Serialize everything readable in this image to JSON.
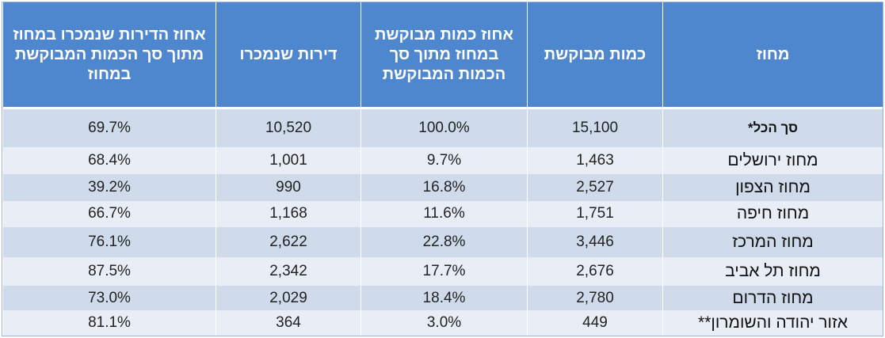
{
  "table": {
    "headers": {
      "region": "מחוז",
      "requested_qty": "כמות מבוקשת",
      "requested_pct": "אחוז כמות מבוקשת במחוז מתוך סך הכמות המבוקשת",
      "sold": "דירות שנמכרו",
      "sold_pct": "אחוז הדירות שנמכרו במחוז מתוך סך הכמות המבוקשת במחוז"
    },
    "rows": [
      {
        "region": "סך הכל*",
        "requested_qty": "15,100",
        "requested_pct": "100.0%",
        "sold": "10,520",
        "sold_pct": "69.7%"
      },
      {
        "region": "מחוז ירושלים",
        "requested_qty": "1,463",
        "requested_pct": "9.7%",
        "sold": "1,001",
        "sold_pct": "68.4%"
      },
      {
        "region": "מחוז הצפון",
        "requested_qty": "2,527",
        "requested_pct": "16.8%",
        "sold": "990",
        "sold_pct": "39.2%"
      },
      {
        "region": "מחוז חיפה",
        "requested_qty": "1,751",
        "requested_pct": "11.6%",
        "sold": "1,168",
        "sold_pct": "66.7%"
      },
      {
        "region": "מחוז המרכז",
        "requested_qty": "3,446",
        "requested_pct": "22.8%",
        "sold": "2,622",
        "sold_pct": "76.1%"
      },
      {
        "region": "מחוז תל אביב",
        "requested_qty": "2,676",
        "requested_pct": "17.7%",
        "sold": "2,342",
        "sold_pct": "87.5%"
      },
      {
        "region": "מחוז הדרום",
        "requested_qty": "2,780",
        "requested_pct": "18.4%",
        "sold": "2,029",
        "sold_pct": "73.0%"
      },
      {
        "region": "אזור יהודה והשומרון**",
        "requested_qty": "449",
        "requested_pct": "3.0%",
        "sold": "364",
        "sold_pct": "81.1%"
      }
    ]
  },
  "colors": {
    "header_bg": "#4f87cf",
    "row_dark": "#cfdaeb",
    "row_light": "#e8edf6"
  }
}
